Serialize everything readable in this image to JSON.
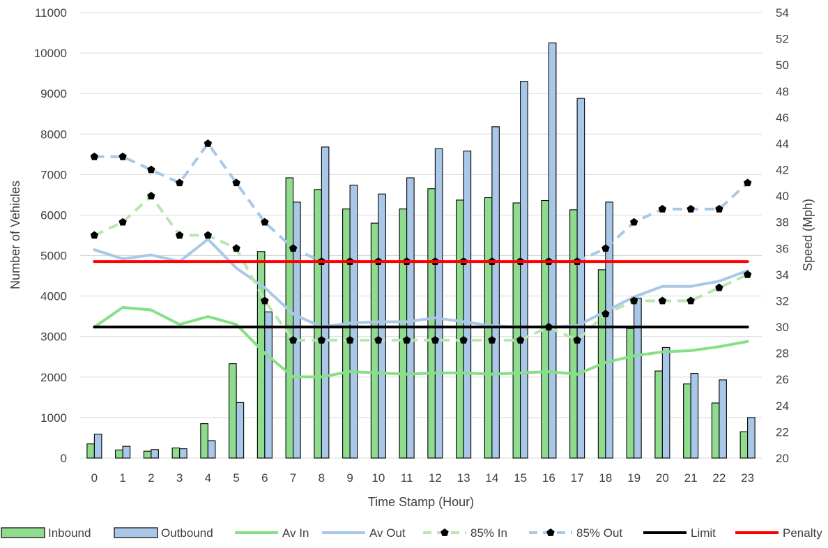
{
  "chart_data": {
    "type": "bar",
    "title": "",
    "xlabel": "Time Stamp (Hour)",
    "ylabel": "Number of Vehicles",
    "y2label": "Speed (Mph)",
    "ylim": [
      0,
      11000
    ],
    "y2lim": [
      20,
      54
    ],
    "y_ticks": [
      0,
      1000,
      2000,
      3000,
      4000,
      5000,
      6000,
      7000,
      8000,
      9000,
      10000,
      11000
    ],
    "y2_ticks": [
      20,
      22,
      24,
      26,
      28,
      30,
      32,
      34,
      36,
      38,
      40,
      42,
      44,
      46,
      48,
      50,
      52,
      54
    ],
    "categories": [
      "0",
      "1",
      "2",
      "3",
      "4",
      "5",
      "6",
      "7",
      "8",
      "9",
      "10",
      "11",
      "12",
      "13",
      "14",
      "15",
      "16",
      "17",
      "18",
      "19",
      "20",
      "21",
      "22",
      "23"
    ],
    "grid": "horizontal",
    "legend_position": "bottom",
    "series": [
      {
        "name": "Inbound",
        "kind": "bar",
        "axis": "left",
        "color": "#8fdc8f",
        "values": [
          350,
          200,
          170,
          250,
          850,
          2330,
          5100,
          6920,
          6630,
          6150,
          5800,
          6150,
          6650,
          6370,
          6430,
          6300,
          6360,
          6130,
          4650,
          3200,
          2150,
          1830,
          1360,
          650
        ]
      },
      {
        "name": "Outbound",
        "kind": "bar",
        "axis": "left",
        "color": "#a9c8e8",
        "values": [
          590,
          290,
          210,
          230,
          430,
          1370,
          3610,
          6320,
          7680,
          6740,
          6520,
          6920,
          7640,
          7580,
          8180,
          9300,
          10250,
          8880,
          6320,
          3950,
          2730,
          2090,
          1930,
          1000
        ]
      },
      {
        "name": "Av In",
        "kind": "line",
        "axis": "right",
        "color": "#86e086",
        "dashed": false,
        "markers": false,
        "values": [
          30.0,
          31.5,
          31.3,
          30.2,
          30.8,
          30.2,
          28.0,
          26.2,
          26.2,
          26.6,
          26.5,
          26.4,
          26.5,
          26.5,
          26.4,
          26.5,
          26.6,
          26.4,
          27.3,
          27.8,
          28.1,
          28.2,
          28.5,
          28.9
        ]
      },
      {
        "name": "Av Out",
        "kind": "line",
        "axis": "right",
        "color": "#a9c8e8",
        "dashed": false,
        "markers": false,
        "values": [
          35.9,
          35.2,
          35.5,
          35.0,
          36.7,
          34.5,
          33.0,
          31.0,
          30.0,
          30.3,
          30.4,
          30.4,
          30.7,
          30.4,
          30.1,
          30.0,
          30.0,
          30.1,
          31.2,
          32.3,
          33.1,
          33.1,
          33.5,
          34.3
        ]
      },
      {
        "name": "85% In",
        "kind": "line",
        "axis": "right",
        "color": "#b9e6b0",
        "dashed": true,
        "markers": true,
        "values": [
          37,
          38,
          40,
          37,
          37,
          36,
          32,
          29,
          29,
          29,
          29,
          29,
          29,
          29,
          29,
          29,
          30,
          29,
          31,
          32,
          32,
          32,
          33,
          34
        ]
      },
      {
        "name": "85% Out",
        "kind": "line",
        "axis": "right",
        "color": "#a9c8e8",
        "dashed": true,
        "markers": true,
        "values": [
          43,
          43,
          42,
          41,
          44,
          41,
          38,
          36,
          35,
          35,
          35,
          35,
          35,
          35,
          35,
          35,
          35,
          35,
          36,
          38,
          39,
          39,
          39,
          41
        ]
      },
      {
        "name": "Limit",
        "kind": "line",
        "axis": "right",
        "color": "#000000",
        "dashed": false,
        "markers": false,
        "values": [
          30,
          30,
          30,
          30,
          30,
          30,
          30,
          30,
          30,
          30,
          30,
          30,
          30,
          30,
          30,
          30,
          30,
          30,
          30,
          30,
          30,
          30,
          30,
          30
        ]
      },
      {
        "name": "Penalty",
        "kind": "line",
        "axis": "right",
        "color": "#ff0000",
        "dashed": false,
        "markers": false,
        "values": [
          35,
          35,
          35,
          35,
          35,
          35,
          35,
          35,
          35,
          35,
          35,
          35,
          35,
          35,
          35,
          35,
          35,
          35,
          35,
          35,
          35,
          35,
          35,
          35
        ]
      }
    ]
  }
}
